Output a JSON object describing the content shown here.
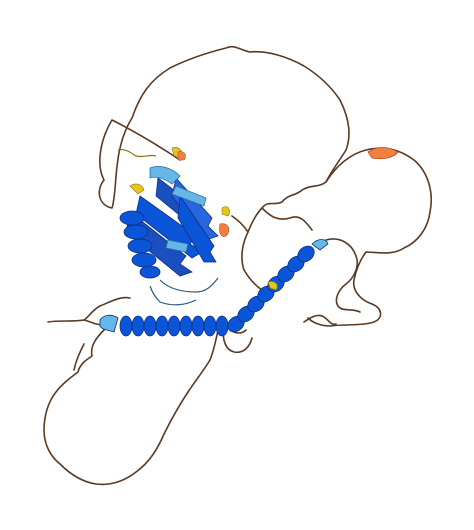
{
  "image": {
    "subject": "protein-structure-cartoon",
    "background": "#ffffff",
    "colors": {
      "very_high": "#0053d6",
      "confident": "#65cbf3",
      "low": "#ffdb13",
      "very_low": "#ff7d45",
      "coil": "#5a3a22"
    }
  }
}
